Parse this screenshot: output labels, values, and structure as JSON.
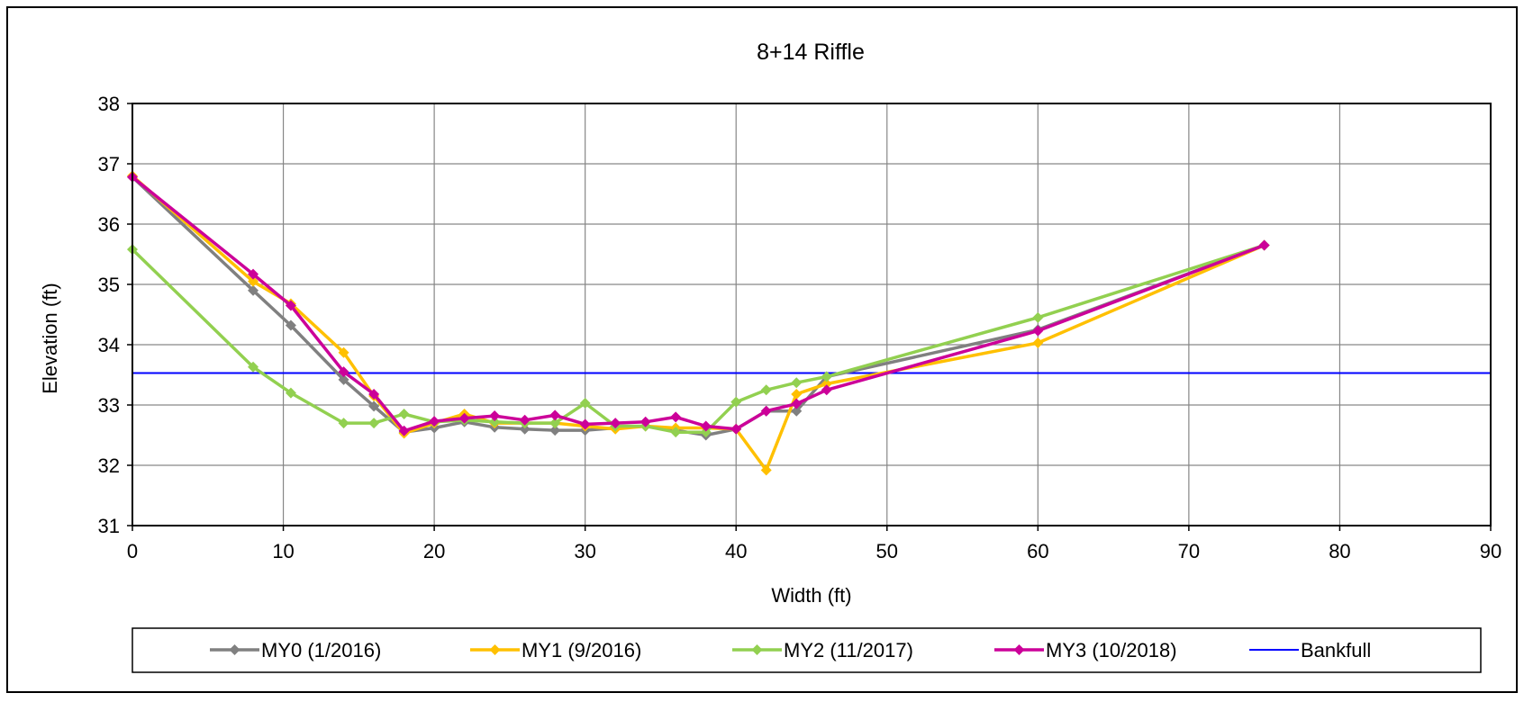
{
  "chart_data": {
    "type": "line",
    "title": "8+14 Riffle",
    "xlabel": "Width (ft)",
    "ylabel": "Elevation (ft)",
    "xlim": [
      0,
      90
    ],
    "ylim": [
      31,
      38
    ],
    "x_ticks": [
      "0",
      "10",
      "20",
      "30",
      "40",
      "50",
      "60",
      "70",
      "80",
      "90"
    ],
    "y_ticks": [
      "31",
      "32",
      "33",
      "34",
      "35",
      "36",
      "37",
      "38"
    ],
    "grid": true,
    "legend_position": "bottom",
    "series": [
      {
        "name": "MY0 (1/2016)",
        "color": "#808080",
        "marker": "diamond",
        "points": [
          [
            0,
            36.78
          ],
          [
            8,
            34.9
          ],
          [
            10.5,
            34.32
          ],
          [
            14,
            33.42
          ],
          [
            16,
            32.98
          ],
          [
            18,
            32.55
          ],
          [
            20,
            32.62
          ],
          [
            22,
            32.72
          ],
          [
            24,
            32.63
          ],
          [
            26,
            32.6
          ],
          [
            28,
            32.58
          ],
          [
            30,
            32.58
          ],
          [
            32,
            32.62
          ],
          [
            34,
            32.65
          ],
          [
            36,
            32.58
          ],
          [
            38,
            32.5
          ],
          [
            40,
            32.6
          ],
          [
            42,
            32.9
          ],
          [
            44,
            32.9
          ],
          [
            46,
            33.47
          ],
          [
            60,
            34.25
          ],
          [
            75,
            35.65
          ]
        ]
      },
      {
        "name": "MY1 (9/2016)",
        "color": "#FFC000",
        "marker": "diamond",
        "points": [
          [
            0,
            36.8
          ],
          [
            8,
            35.05
          ],
          [
            10.5,
            34.68
          ],
          [
            14,
            33.87
          ],
          [
            16,
            33.15
          ],
          [
            18,
            32.53
          ],
          [
            20,
            32.7
          ],
          [
            22,
            32.85
          ],
          [
            24,
            32.7
          ],
          [
            26,
            32.7
          ],
          [
            28,
            32.7
          ],
          [
            30,
            32.65
          ],
          [
            32,
            32.6
          ],
          [
            34,
            32.65
          ],
          [
            36,
            32.62
          ],
          [
            38,
            32.62
          ],
          [
            40,
            32.6
          ],
          [
            42,
            31.92
          ],
          [
            44,
            33.18
          ],
          [
            46,
            33.35
          ],
          [
            60,
            34.03
          ],
          [
            75,
            35.65
          ]
        ]
      },
      {
        "name": "MY2 (11/2017)",
        "color": "#92D050",
        "marker": "diamond",
        "points": [
          [
            0,
            35.58
          ],
          [
            8,
            33.63
          ],
          [
            10.5,
            33.2
          ],
          [
            14,
            32.7
          ],
          [
            16,
            32.7
          ],
          [
            18,
            32.85
          ],
          [
            20,
            32.72
          ],
          [
            22,
            32.75
          ],
          [
            24,
            32.72
          ],
          [
            26,
            32.7
          ],
          [
            28,
            32.7
          ],
          [
            30,
            33.03
          ],
          [
            32,
            32.65
          ],
          [
            34,
            32.65
          ],
          [
            36,
            32.55
          ],
          [
            38,
            32.55
          ],
          [
            40,
            33.05
          ],
          [
            42,
            33.25
          ],
          [
            44,
            33.37
          ],
          [
            46,
            33.47
          ],
          [
            60,
            34.45
          ],
          [
            75,
            35.65
          ]
        ]
      },
      {
        "name": "MY3 (10/2018)",
        "color": "#CC0099",
        "marker": "diamond",
        "points": [
          [
            0,
            36.78
          ],
          [
            8,
            35.17
          ],
          [
            10.5,
            34.65
          ],
          [
            14,
            33.55
          ],
          [
            16,
            33.18
          ],
          [
            18,
            32.57
          ],
          [
            20,
            32.73
          ],
          [
            22,
            32.78
          ],
          [
            24,
            32.82
          ],
          [
            26,
            32.75
          ],
          [
            28,
            32.83
          ],
          [
            30,
            32.68
          ],
          [
            32,
            32.7
          ],
          [
            34,
            32.72
          ],
          [
            36,
            32.8
          ],
          [
            38,
            32.65
          ],
          [
            40,
            32.6
          ],
          [
            42,
            32.9
          ],
          [
            44,
            33.02
          ],
          [
            46,
            33.25
          ],
          [
            60,
            34.23
          ],
          [
            75,
            35.65
          ]
        ]
      },
      {
        "name": "Bankfull",
        "color": "#0000FF",
        "marker": "none",
        "points": [
          [
            0,
            33.53
          ],
          [
            90,
            33.53
          ]
        ]
      }
    ]
  }
}
